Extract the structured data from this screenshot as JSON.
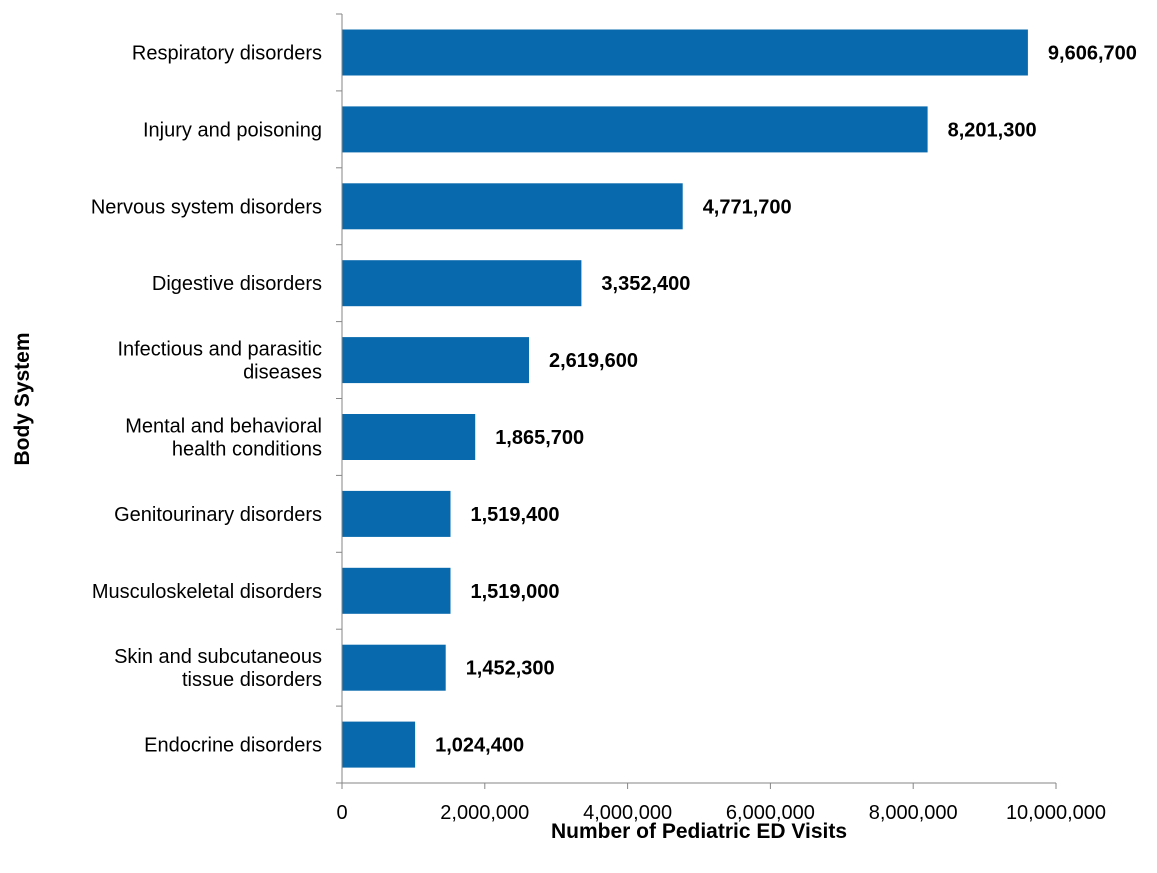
{
  "chart_data": {
    "type": "bar",
    "orientation": "horizontal",
    "categories": [
      "Respiratory disorders",
      "Injury and poisoning",
      "Nervous system disorders",
      "Digestive disorders",
      "Infectious and parasitic diseases",
      "Mental and behavioral health conditions",
      "Genitourinary disorders",
      "Musculoskeletal disorders",
      "Skin and subcutaneous tissue disorders",
      "Endocrine disorders"
    ],
    "category_label_lines": [
      [
        "Respiratory disorders"
      ],
      [
        "Injury and poisoning"
      ],
      [
        "Nervous system disorders"
      ],
      [
        "Digestive disorders"
      ],
      [
        "Infectious and parasitic",
        "diseases"
      ],
      [
        "Mental and behavioral",
        "health conditions"
      ],
      [
        "Genitourinary disorders"
      ],
      [
        "Musculoskeletal disorders"
      ],
      [
        "Skin and subcutaneous",
        "tissue disorders"
      ],
      [
        "Endocrine disorders"
      ]
    ],
    "values": [
      9606700,
      8201300,
      4771700,
      3352400,
      2619600,
      1865700,
      1519400,
      1519000,
      1452300,
      1024400
    ],
    "data_labels": [
      "9,606,700",
      "8,201,300",
      "4,771,700",
      "3,352,400",
      "2,619,600",
      "1,865,700",
      "1,519,400",
      "1,519,000",
      "1,452,300",
      "1,024,400"
    ],
    "xlabel": "Number of Pediatric ED Visits",
    "ylabel": "Body System",
    "xlim": [
      0,
      10000000
    ],
    "x_ticks": [
      0,
      2000000,
      4000000,
      6000000,
      8000000,
      10000000
    ],
    "x_tick_labels": [
      "0",
      "2,000,000",
      "4,000,000",
      "6,000,000",
      "8,000,000",
      "10,000,000"
    ],
    "grid": false,
    "legend": "none",
    "bar_color": "#0869AD"
  }
}
